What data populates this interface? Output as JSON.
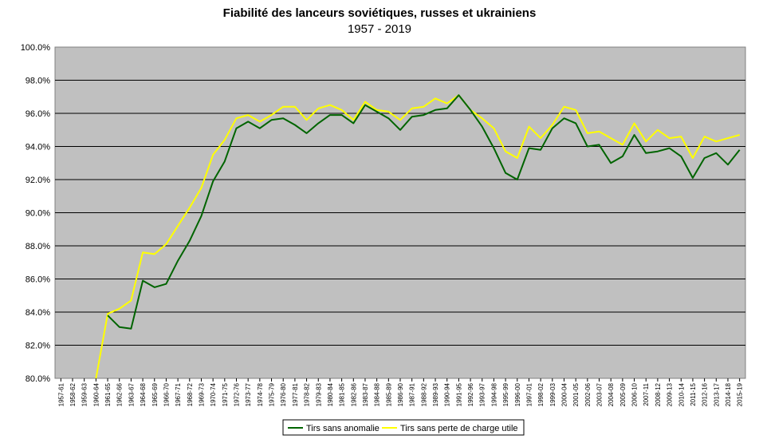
{
  "chart_data": {
    "type": "line",
    "title": "Fiabilité des lanceurs soviétiques, russes et ukrainiens",
    "subtitle": "1957 - 2019",
    "ylim": [
      80.0,
      100.0
    ],
    "yticks": [
      "80.0%",
      "82.0%",
      "84.0%",
      "86.0%",
      "88.0%",
      "90.0%",
      "92.0%",
      "94.0%",
      "96.0%",
      "98.0%",
      "100.0%"
    ],
    "grid": true,
    "plot_background": "#c0c0c0",
    "legend_position": "bottom",
    "categories": [
      "1957-61",
      "1958-62",
      "1959-63",
      "1960-64",
      "1961-65",
      "1962-66",
      "1963-67",
      "1964-68",
      "1965-69",
      "1966-70",
      "1967-71",
      "1968-72",
      "1969-73",
      "1970-74",
      "1971-75",
      "1972-76",
      "1973-77",
      "1974-78",
      "1975-79",
      "1976-80",
      "1977-81",
      "1978-82",
      "1979-83",
      "1980-84",
      "1981-85",
      "1982-86",
      "1983-87",
      "1984-88",
      "1985-89",
      "1986-90",
      "1987-91",
      "1988-92",
      "1989-93",
      "1990-94",
      "1991-95",
      "1992-96",
      "1993-97",
      "1994-98",
      "1995-99",
      "1996-00",
      "1997-01",
      "1998-02",
      "1999-03",
      "2000-04",
      "2001-05",
      "2002-06",
      "2003-07",
      "2004-08",
      "2005-09",
      "2006-10",
      "2007-11",
      "2008-12",
      "2009-13",
      "2010-14",
      "2011-15",
      "2012-16",
      "2013-17",
      "2014-18",
      "2015-19"
    ],
    "series": [
      {
        "name": "Tirs sans anomalie",
        "color": "#006400",
        "values": [
          null,
          null,
          null,
          null,
          83.8,
          83.1,
          83.0,
          85.9,
          85.5,
          85.7,
          87.1,
          88.3,
          89.8,
          91.9,
          93.1,
          95.1,
          95.5,
          95.1,
          95.6,
          95.7,
          95.3,
          94.8,
          95.4,
          95.9,
          95.9,
          95.4,
          96.5,
          96.1,
          95.7,
          95.0,
          95.8,
          95.9,
          96.2,
          96.3,
          97.1,
          96.2,
          95.2,
          93.9,
          92.4,
          92.0,
          93.9,
          93.8,
          95.1,
          95.7,
          95.4,
          94.0,
          94.1,
          93.0,
          93.4,
          94.7,
          93.6,
          93.7,
          93.9,
          93.4,
          92.1,
          93.3,
          93.6,
          92.9,
          93.8
        ]
      },
      {
        "name": "Tirs sans perte de charge utile",
        "color": "#ffff00",
        "values": [
          null,
          null,
          null,
          80.0,
          83.9,
          84.2,
          84.7,
          87.6,
          87.5,
          88.1,
          89.2,
          90.3,
          91.5,
          93.5,
          94.4,
          95.7,
          95.9,
          95.5,
          95.9,
          96.4,
          96.4,
          95.6,
          96.3,
          96.5,
          96.2,
          95.6,
          96.7,
          96.2,
          96.1,
          95.6,
          96.3,
          96.4,
          96.9,
          96.6,
          97.1,
          96.2,
          95.7,
          95.1,
          93.7,
          93.3,
          95.2,
          94.5,
          95.3,
          96.4,
          96.2,
          94.8,
          94.9,
          94.5,
          94.1,
          95.4,
          94.3,
          95.0,
          94.5,
          94.6,
          93.3,
          94.6,
          94.3,
          94.5,
          94.7
        ]
      }
    ]
  }
}
